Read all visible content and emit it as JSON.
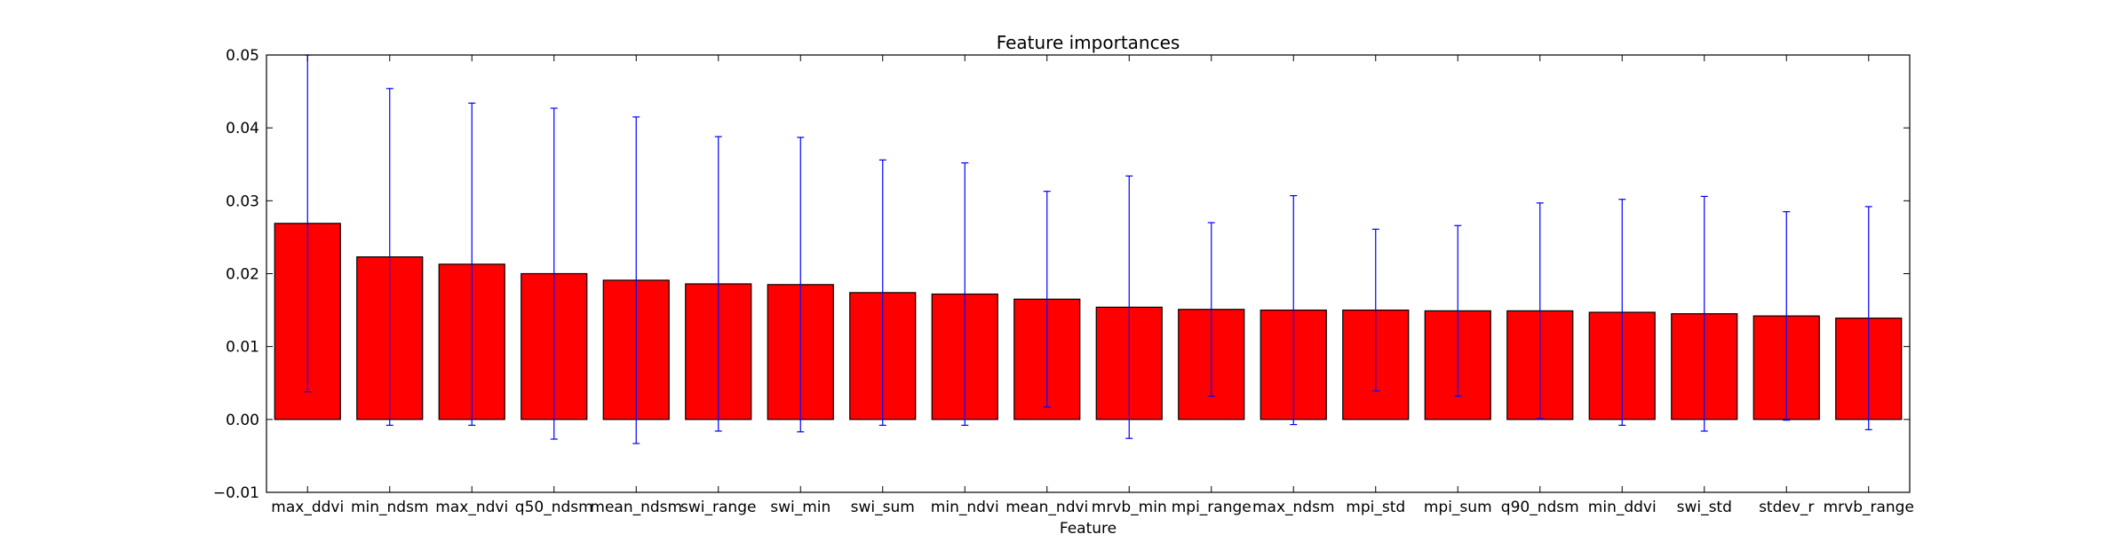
{
  "chart_data": {
    "type": "bar",
    "title": "Feature importances",
    "xlabel": "Feature",
    "ylabel": "",
    "ylim": [
      -0.01,
      0.05
    ],
    "yticks": [
      -0.01,
      0.0,
      0.01,
      0.02,
      0.03,
      0.04,
      0.05
    ],
    "ytick_labels": [
      "−0.01",
      "0.00",
      "0.01",
      "0.02",
      "0.03",
      "0.04",
      "0.05"
    ],
    "categories": [
      "max_ddvi",
      "min_ndsm",
      "max_ndvi",
      "q50_ndsm",
      "mean_ndsm",
      "swi_range",
      "swi_min",
      "swi_sum",
      "min_ndvi",
      "mean_ndvi",
      "mrvb_min",
      "mpi_range",
      "max_ndsm",
      "mpi_std",
      "mpi_sum",
      "q90_ndsm",
      "min_ddvi",
      "swi_std",
      "stdev_r",
      "mrvb_range"
    ],
    "values": [
      0.0269,
      0.0223,
      0.0213,
      0.02,
      0.0191,
      0.0186,
      0.0185,
      0.0174,
      0.0172,
      0.0165,
      0.0154,
      0.0151,
      0.015,
      0.015,
      0.0149,
      0.0149,
      0.0147,
      0.0145,
      0.0142,
      0.0139
    ],
    "error": [
      0.0231,
      0.0231,
      0.0221,
      0.0227,
      0.0224,
      0.0202,
      0.0202,
      0.0182,
      0.018,
      0.0148,
      0.018,
      0.0119,
      0.0157,
      0.0111,
      0.0117,
      0.0148,
      0.0155,
      0.0161,
      0.0143,
      0.0153
    ],
    "grid": false,
    "colors": {
      "bar": "#ff0000",
      "bar_edge": "#000000",
      "error_bar": "#0000ff",
      "axes": "#000000"
    }
  }
}
